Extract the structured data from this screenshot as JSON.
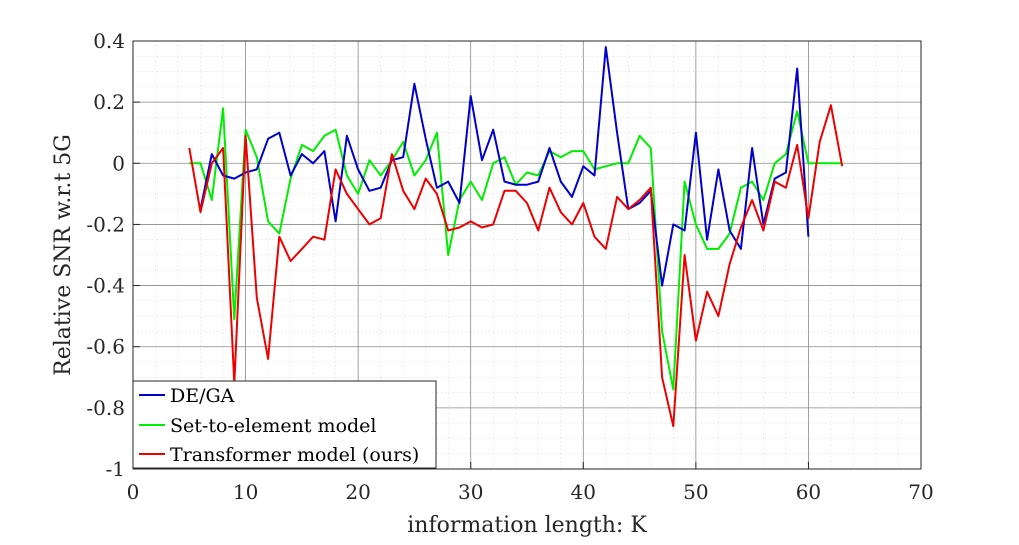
{
  "chart_data": {
    "type": "line",
    "title": "",
    "xlabel": "information length: K",
    "ylabel": "Relative SNR w.r.t 5G",
    "xlim": [
      0,
      70
    ],
    "ylim": [
      -1,
      0.4
    ],
    "xticks": [
      0,
      10,
      20,
      30,
      40,
      50,
      60,
      70
    ],
    "yticks": [
      0.4,
      0.2,
      0,
      -0.2,
      -0.4,
      -0.6,
      -0.8,
      -1
    ],
    "xtick_labels": [
      "0",
      "10",
      "20",
      "30",
      "40",
      "50",
      "60",
      "70"
    ],
    "ytick_labels": [
      "0.4",
      "0.2",
      "0",
      "-0.2",
      "-0.4",
      "-0.6",
      "-0.8",
      "-1"
    ],
    "grid": true,
    "minor_grid": true,
    "legend_position": "bottom-left",
    "series": [
      {
        "name": "DE/GA",
        "color": "#0000cc",
        "x": [
          6,
          7,
          8,
          9,
          10,
          11,
          12,
          13,
          14,
          15,
          16,
          17,
          18,
          19,
          20,
          21,
          22,
          23,
          24,
          25,
          26,
          27,
          28,
          29,
          30,
          31,
          32,
          33,
          34,
          35,
          36,
          37,
          38,
          39,
          40,
          41,
          42,
          43,
          44,
          45,
          46,
          47,
          48,
          49,
          50,
          51,
          52,
          53,
          54,
          55,
          56,
          57,
          58,
          59,
          60
        ],
        "values": [
          -0.15,
          0.03,
          -0.04,
          -0.05,
          -0.03,
          -0.02,
          0.08,
          0.1,
          -0.04,
          0.03,
          0.0,
          0.04,
          -0.19,
          0.09,
          -0.02,
          -0.09,
          -0.08,
          0.01,
          0.02,
          0.26,
          0.08,
          -0.08,
          -0.06,
          -0.13,
          0.22,
          0.01,
          0.11,
          -0.06,
          -0.07,
          -0.07,
          -0.06,
          0.05,
          -0.06,
          -0.11,
          -0.01,
          -0.04,
          0.38,
          0.1,
          -0.15,
          -0.13,
          -0.09,
          -0.4,
          -0.2,
          -0.22,
          0.1,
          -0.25,
          -0.02,
          -0.22,
          -0.28,
          0.05,
          -0.2,
          -0.05,
          -0.03,
          0.31,
          -0.24
        ]
      },
      {
        "name": "Set-to-element model",
        "color": "#00ee00",
        "x": [
          5,
          6,
          7,
          8,
          9,
          10,
          11,
          12,
          13,
          14,
          15,
          16,
          17,
          18,
          19,
          20,
          21,
          22,
          23,
          24,
          25,
          26,
          27,
          28,
          29,
          30,
          31,
          32,
          33,
          34,
          35,
          36,
          37,
          38,
          39,
          40,
          41,
          42,
          43,
          44,
          45,
          46,
          47,
          48,
          49,
          50,
          51,
          52,
          53,
          54,
          55,
          56,
          57,
          58,
          59,
          60,
          61,
          62,
          63
        ],
        "values": [
          0.0,
          0.0,
          -0.12,
          0.18,
          -0.51,
          0.11,
          0.02,
          -0.19,
          -0.23,
          -0.05,
          0.06,
          0.04,
          0.09,
          0.11,
          -0.04,
          -0.1,
          0.01,
          -0.04,
          0.01,
          0.07,
          -0.04,
          0.01,
          0.1,
          -0.3,
          -0.12,
          -0.06,
          -0.12,
          0.0,
          0.02,
          -0.07,
          -0.03,
          -0.04,
          0.04,
          0.02,
          0.04,
          0.04,
          -0.02,
          -0.01,
          0.0,
          0.0,
          0.09,
          0.05,
          -0.55,
          -0.74,
          -0.06,
          -0.2,
          -0.28,
          -0.28,
          -0.23,
          -0.08,
          -0.06,
          -0.12,
          0.0,
          0.03,
          0.17,
          0.0,
          0.0,
          0.0,
          0.0
        ]
      },
      {
        "name": "Transformer model (ours)",
        "color": "#ee0000",
        "x": [
          5,
          6,
          7,
          8,
          9,
          10,
          11,
          12,
          13,
          14,
          15,
          16,
          17,
          18,
          19,
          20,
          21,
          22,
          23,
          24,
          25,
          26,
          27,
          28,
          29,
          30,
          31,
          32,
          33,
          34,
          35,
          36,
          37,
          38,
          39,
          40,
          41,
          42,
          43,
          44,
          45,
          46,
          47,
          48,
          49,
          50,
          51,
          52,
          53,
          54,
          55,
          56,
          57,
          58,
          59,
          60,
          61,
          62,
          63
        ],
        "values": [
          0.05,
          -0.16,
          0.0,
          0.05,
          -0.72,
          0.09,
          -0.44,
          -0.64,
          -0.24,
          -0.32,
          -0.28,
          -0.24,
          -0.25,
          -0.02,
          -0.1,
          -0.15,
          -0.2,
          -0.18,
          0.03,
          -0.09,
          -0.15,
          -0.05,
          -0.1,
          -0.22,
          -0.21,
          -0.19,
          -0.21,
          -0.2,
          -0.09,
          -0.09,
          -0.13,
          -0.22,
          -0.08,
          -0.16,
          -0.2,
          -0.13,
          -0.24,
          -0.28,
          -0.11,
          -0.15,
          -0.12,
          -0.08,
          -0.7,
          -0.86,
          -0.3,
          -0.58,
          -0.42,
          -0.5,
          -0.33,
          -0.21,
          -0.12,
          -0.22,
          -0.06,
          -0.08,
          0.06,
          -0.18,
          0.07,
          0.19,
          -0.01
        ]
      }
    ]
  }
}
